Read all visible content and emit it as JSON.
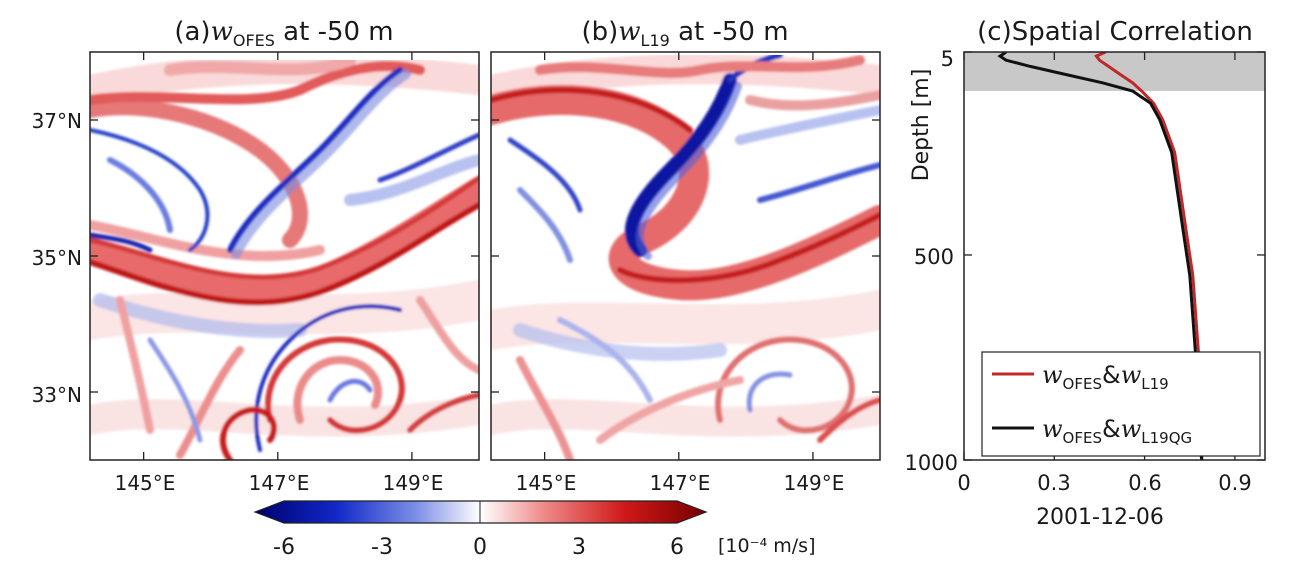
{
  "chart_data": [
    {
      "type": "heatmap",
      "panel": "(a)",
      "title": {
        "prefix": "(a)",
        "var": "w",
        "sub": "OFES",
        "suffix": " at -50 m"
      },
      "x_ticks": [
        "145°E",
        "147°E",
        "149°E"
      ],
      "y_ticks": [
        "37°N",
        "35°N",
        "33°N"
      ],
      "xlim": [
        144.2,
        150.0
      ],
      "ylim": [
        32.0,
        38.0
      ],
      "x_tick_values": [
        145,
        147,
        149
      ],
      "y_tick_values": [
        37,
        35,
        33
      ],
      "colormap": "seismic",
      "clim": [
        -6,
        6
      ]
    },
    {
      "type": "heatmap",
      "panel": "(b)",
      "title": {
        "prefix": "(b)",
        "var": "w",
        "sub": "L19",
        "suffix": " at -50 m"
      },
      "x_ticks": [
        "145°E",
        "147°E",
        "149°E"
      ],
      "xlim": [
        144.2,
        150.0
      ],
      "ylim": [
        32.0,
        38.0
      ],
      "x_tick_values": [
        145,
        147,
        149
      ],
      "colormap": "seismic",
      "clim": [
        -6,
        6
      ]
    },
    {
      "type": "line",
      "panel": "(c)",
      "title": "(c)Spatial Correlation",
      "xlabel": "2001-12-06",
      "ylabel": "Depth [m]",
      "xlim": [
        0,
        1.0
      ],
      "ylim": [
        1000,
        5
      ],
      "x_ticks": [
        "0",
        "0.3",
        "0.6",
        "0.9"
      ],
      "x_tick_values": [
        0,
        0.3,
        0.6,
        0.9
      ],
      "y_ticks": [
        "5",
        "500",
        "1000"
      ],
      "y_tick_values": [
        5,
        500,
        1000
      ],
      "shaded_depth_range": [
        5,
        100
      ],
      "legend_position": "lower-right",
      "series": [
        {
          "name_var1": "w",
          "name_sub1": "OFES",
          "name_amp": "&",
          "name_var2": "w",
          "name_sub2": "L19",
          "color": "#c0282a",
          "depth": [
            5,
            15,
            25,
            40,
            60,
            80,
            100,
            130,
            170,
            250,
            350,
            450,
            550,
            650,
            750,
            850,
            950,
            1000
          ],
          "corr": [
            0.47,
            0.44,
            0.45,
            0.48,
            0.52,
            0.56,
            0.59,
            0.63,
            0.66,
            0.7,
            0.72,
            0.74,
            0.76,
            0.77,
            0.78,
            0.79,
            0.79,
            0.79
          ]
        },
        {
          "name_var1": "w",
          "name_sub1": "OFES",
          "name_amp": "&",
          "name_var2": "w",
          "name_sub2": "L19QG",
          "color": "#111111",
          "depth": [
            5,
            15,
            25,
            40,
            60,
            80,
            100,
            130,
            170,
            250,
            350,
            450,
            550,
            650,
            750,
            850,
            950,
            1000
          ],
          "corr": [
            0.14,
            0.12,
            0.14,
            0.22,
            0.34,
            0.46,
            0.56,
            0.62,
            0.65,
            0.69,
            0.71,
            0.73,
            0.75,
            0.76,
            0.77,
            0.78,
            0.78,
            0.79
          ]
        }
      ]
    }
  ],
  "colorbar": {
    "ticks": [
      "-6",
      "-3",
      "0",
      "3",
      "6"
    ],
    "tick_values": [
      -6,
      -3,
      0,
      3,
      6
    ],
    "range": [
      -6,
      6
    ],
    "units": "[10⁻⁴ m/s]",
    "colors": {
      "negative": "#0a0f8c",
      "zero": "#ffffff",
      "positive": "#8c0a0a"
    }
  }
}
